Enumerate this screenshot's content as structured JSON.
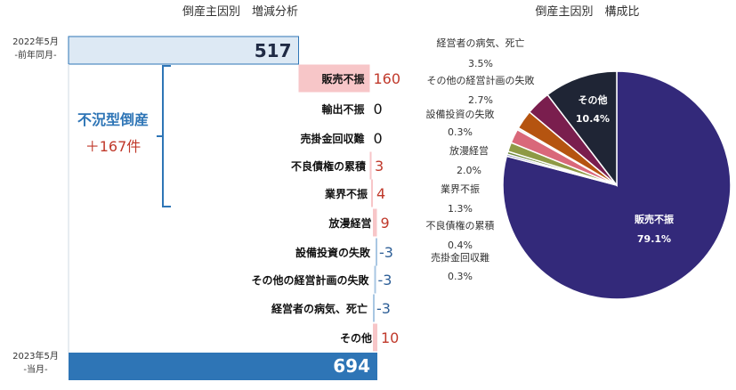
{
  "colors": {
    "base_prev": "#dde9f4",
    "base_prev_border": "#2e75b6",
    "base_curr": "#2e75b6",
    "increase": "#f7c6c8",
    "decrease": "#a9c7e3",
    "pos_text": "#c0392b",
    "neg_text": "#2e5f97",
    "bracket": "#2e75b6",
    "accent_label": "#2e75b6"
  },
  "chart_data": [
    {
      "type": "bar",
      "subtype": "waterfall",
      "title": "倒産主因別　増減分析",
      "start": {
        "label_line1": "2022年5月",
        "label_line2": "-前年同月-",
        "value": 517
      },
      "end": {
        "label_line1": "2023年5月",
        "label_line2": "-当月-",
        "value": 694
      },
      "categories": [
        "販売不振",
        "輸出不振",
        "売掛金回収難",
        "不良債権の累積",
        "業界不振",
        "放漫経営",
        "設備投資の失敗",
        "その他の経営計画の失敗",
        "経営者の病気、死亡",
        "その他"
      ],
      "values": [
        160,
        0,
        0,
        3,
        4,
        9,
        -3,
        -3,
        -3,
        10
      ],
      "value_labels": [
        "160",
        "0",
        "0",
        "3",
        "4",
        "9",
        "-3",
        "-3",
        "-3",
        "10"
      ],
      "annotation": {
        "line1": "不況型倒産",
        "line2": "＋167件"
      }
    },
    {
      "type": "pie",
      "title": "倒産主因別　構成比",
      "slices": [
        {
          "label": "販売不振",
          "value": 79.1,
          "pct_label": "79.1%",
          "color": "#33297a"
        },
        {
          "label": "売掛金回収難",
          "value": 0.3,
          "pct_label": "0.3%",
          "color": "#7b7fb5"
        },
        {
          "label": "不良債権の累積",
          "value": 0.4,
          "pct_label": "0.4%",
          "color": "#6f8a3e"
        },
        {
          "label": "業界不振",
          "value": 1.3,
          "pct_label": "1.3%",
          "color": "#8e9a45"
        },
        {
          "label": "放漫経営",
          "value": 2.0,
          "pct_label": "2.0%",
          "color": "#d9687a"
        },
        {
          "label": "設備投資の失敗",
          "value": 0.3,
          "pct_label": "0.3%",
          "color": "#ececec"
        },
        {
          "label": "その他の経営計画の失敗",
          "value": 2.7,
          "pct_label": "2.7%",
          "color": "#b55410"
        },
        {
          "label": "経営者の病気、死亡",
          "value": 3.5,
          "pct_label": "3.5%",
          "color": "#7a1e4e"
        },
        {
          "label": "その他",
          "value": 10.4,
          "pct_label": "10.4%",
          "color": "#1f2535"
        }
      ]
    }
  ]
}
